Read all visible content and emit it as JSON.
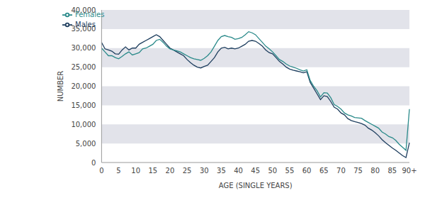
{
  "chart_data": {
    "type": "line",
    "x_label": "AGE (SINGLE YEARS)",
    "y_label": "NUMBER",
    "categories": [
      "0",
      null,
      null,
      null,
      null,
      "5",
      null,
      null,
      null,
      null,
      "10",
      null,
      null,
      null,
      null,
      "15",
      null,
      null,
      null,
      null,
      "20",
      null,
      null,
      null,
      null,
      "25",
      null,
      null,
      null,
      null,
      "30",
      null,
      null,
      null,
      null,
      "35",
      null,
      null,
      null,
      null,
      "40",
      null,
      null,
      null,
      null,
      "45",
      null,
      null,
      null,
      null,
      "50",
      null,
      null,
      null,
      null,
      "55",
      null,
      null,
      null,
      null,
      "60",
      null,
      null,
      null,
      null,
      "65",
      null,
      null,
      null,
      null,
      "70",
      null,
      null,
      null,
      null,
      "75",
      null,
      null,
      null,
      null,
      "80",
      null,
      null,
      null,
      null,
      "85",
      null,
      null,
      null,
      null,
      "90+"
    ],
    "series": [
      {
        "name": "Males",
        "color": "#1f3f5f",
        "values": [
          31500,
          29800,
          29500,
          29200,
          28500,
          28400,
          29500,
          30300,
          29500,
          30000,
          30000,
          31000,
          31500,
          32000,
          32500,
          33000,
          33500,
          33000,
          32000,
          31000,
          30000,
          29500,
          29000,
          28500,
          28000,
          27000,
          26200,
          25500,
          25000,
          24800,
          25200,
          25500,
          26500,
          27500,
          29000,
          30000,
          30200,
          29800,
          30000,
          29800,
          30000,
          30500,
          31000,
          31800,
          32000,
          31800,
          31200,
          30500,
          29500,
          28800,
          28500,
          27500,
          26500,
          25800,
          25000,
          24500,
          24200,
          24000,
          23800,
          23500,
          23800,
          21000,
          19500,
          18000,
          16500,
          17500,
          17300,
          16000,
          14500,
          14000,
          13000,
          12500,
          11500,
          11000,
          10700,
          10500,
          10200,
          9800,
          9000,
          8500,
          7800,
          7000,
          6000,
          5200,
          4500,
          3800,
          3200,
          2500,
          1800,
          1300,
          5200
        ]
      },
      {
        "name": "Females",
        "color": "#2a8a8a",
        "values": [
          30000,
          29000,
          28000,
          28000,
          27500,
          27200,
          27800,
          28500,
          29000,
          28200,
          28500,
          28800,
          29800,
          30000,
          30500,
          31000,
          32000,
          32300,
          31500,
          30500,
          29800,
          29500,
          29300,
          29000,
          28500,
          28000,
          27500,
          27200,
          27000,
          26800,
          27300,
          28000,
          29000,
          30500,
          32000,
          33000,
          33300,
          33000,
          32800,
          32300,
          32500,
          32800,
          33500,
          34300,
          34000,
          33500,
          32500,
          31500,
          30500,
          29800,
          29000,
          28000,
          27000,
          26500,
          25800,
          25300,
          25000,
          24700,
          24300,
          24000,
          24300,
          21500,
          20000,
          18800,
          17200,
          18300,
          18200,
          17000,
          15200,
          14700,
          14000,
          13000,
          12500,
          12200,
          11800,
          11700,
          11600,
          11000,
          10500,
          10000,
          9500,
          9000,
          8000,
          7500,
          6800,
          6500,
          5800,
          4800,
          4000,
          3200,
          14000
        ]
      }
    ],
    "ylim": [
      0,
      40000
    ],
    "yticks": [
      0,
      {
        "value": 5000,
        "label": "5,000"
      },
      {
        "value": 10000,
        "label": "10,000"
      },
      {
        "value": 15000,
        "label": "15,000"
      },
      {
        "value": 20000,
        "label": "20,000"
      },
      {
        "value": 25000,
        "label": "25,000"
      },
      {
        "value": 30000,
        "label": "30,000"
      },
      {
        "value": 35000,
        "label": "35,000"
      },
      {
        "value": 40000,
        "label": "40,000"
      }
    ],
    "grid": true,
    "legend": "upper left"
  }
}
